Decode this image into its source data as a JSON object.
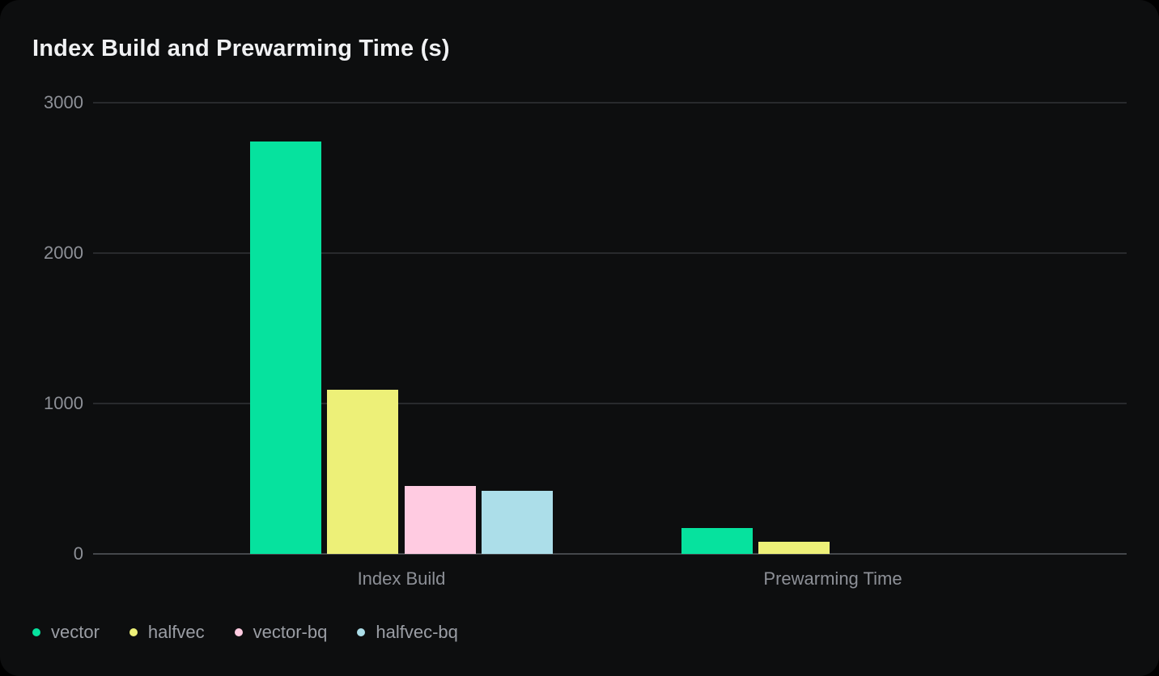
{
  "panel": {
    "background": "#0d0e0f",
    "outer_background": "#000000"
  },
  "chart_data": {
    "type": "bar",
    "title": "Index Build and Prewarming Time (s)",
    "categories": [
      "Index Build",
      "Prewarming Time"
    ],
    "series": [
      {
        "name": "vector",
        "color": "#06e29e",
        "values": [
          2740,
          170
        ]
      },
      {
        "name": "halfvec",
        "color": "#edf078",
        "values": [
          1090,
          80
        ]
      },
      {
        "name": "vector-bq",
        "color": "#ffcbe1",
        "values": [
          450,
          0
        ]
      },
      {
        "name": "halfvec-bq",
        "color": "#acdee9",
        "values": [
          420,
          0
        ]
      }
    ],
    "xlabel": "",
    "ylabel": "",
    "ylim": [
      0,
      3000
    ],
    "y_ticks": [
      0,
      1000,
      2000,
      3000
    ],
    "y_tick_labels": [
      "0",
      "1000",
      "2000",
      "3000"
    ],
    "grid": true,
    "legend_position": "bottom-left",
    "text_colors": {
      "title": "#f0f1f3",
      "axis": "#8d9097",
      "legend": "#9b9ea5"
    }
  }
}
